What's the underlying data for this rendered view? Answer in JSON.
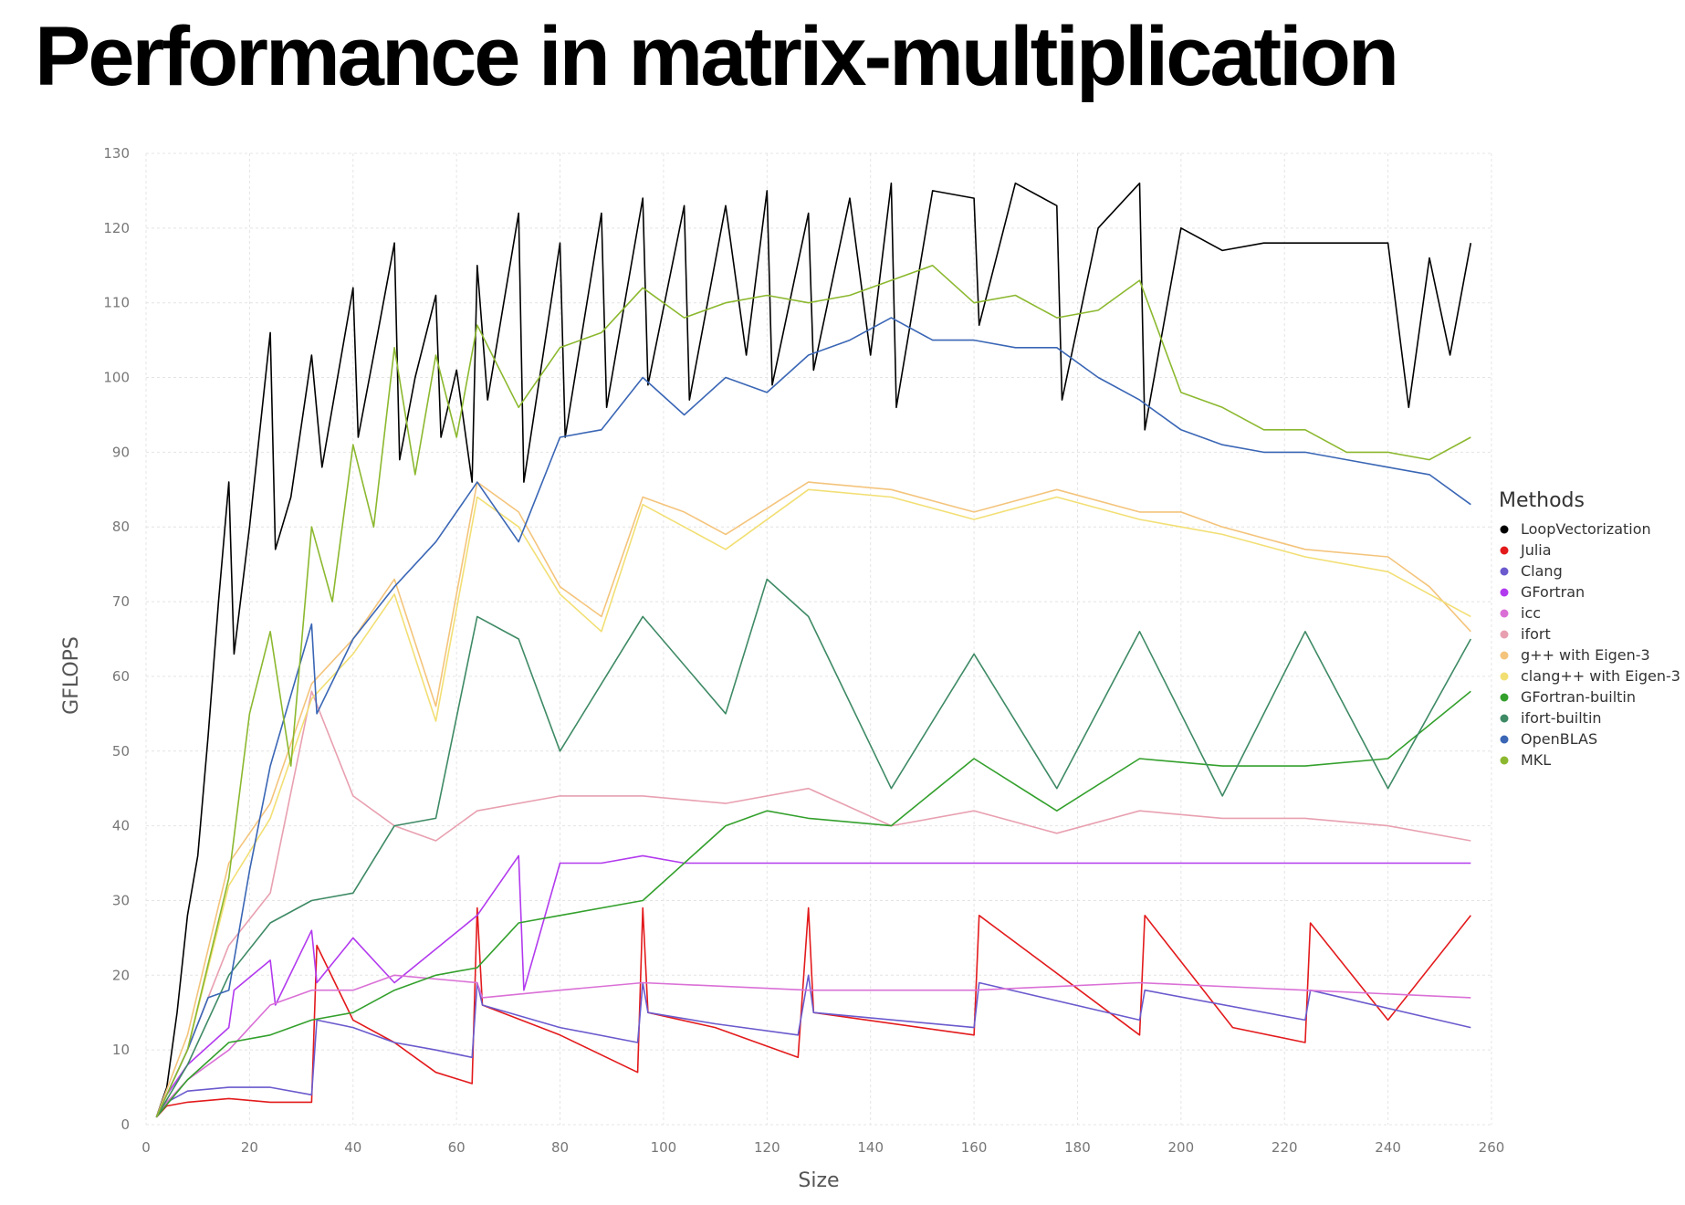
{
  "slide": {
    "title": "Performance in matrix-multiplication"
  },
  "chart_data": {
    "type": "line",
    "title": "",
    "xlabel": "Size",
    "ylabel": "GFLOPS",
    "xlim": [
      0,
      260
    ],
    "ylim": [
      0,
      130
    ],
    "xticks": [
      0,
      20,
      40,
      60,
      80,
      100,
      120,
      140,
      160,
      180,
      200,
      220,
      240,
      260
    ],
    "yticks": [
      0,
      10,
      20,
      30,
      40,
      50,
      60,
      70,
      80,
      90,
      100,
      110,
      120,
      130
    ],
    "grid": true,
    "legend": {
      "title": "Methods",
      "position": "right"
    },
    "series": [
      {
        "name": "LoopVectorization",
        "color": "#000000",
        "x": [
          2,
          4,
          6,
          8,
          10,
          12,
          14,
          16,
          17,
          20,
          24,
          25,
          28,
          32,
          34,
          40,
          41,
          44,
          48,
          49,
          52,
          56,
          57,
          60,
          63,
          64,
          66,
          72,
          73,
          80,
          81,
          88,
          89,
          96,
          97,
          104,
          105,
          112,
          116,
          120,
          121,
          128,
          129,
          136,
          140,
          144,
          145,
          152,
          160,
          161,
          168,
          176,
          177,
          184,
          192,
          193,
          200,
          208,
          216,
          224,
          232,
          240,
          244,
          248,
          252,
          256
        ],
        "y": [
          1,
          5,
          15,
          28,
          36,
          52,
          70,
          86,
          63,
          80,
          106,
          77,
          84,
          103,
          88,
          112,
          92,
          103,
          118,
          89,
          100,
          111,
          92,
          101,
          86,
          115,
          97,
          122,
          86,
          118,
          92,
          122,
          96,
          124,
          99,
          123,
          97,
          123,
          103,
          125,
          99,
          122,
          101,
          124,
          103,
          126,
          96,
          125,
          124,
          107,
          126,
          123,
          97,
          120,
          126,
          93,
          120,
          117,
          118,
          118,
          118,
          118,
          96,
          116,
          103,
          118
        ]
      },
      {
        "name": "Julia",
        "color": "#e31a1c",
        "x": [
          2,
          4,
          8,
          16,
          24,
          32,
          33,
          40,
          48,
          56,
          63,
          64,
          65,
          80,
          95,
          96,
          97,
          110,
          126,
          128,
          129,
          160,
          161,
          192,
          193,
          210,
          224,
          225,
          240,
          256
        ],
        "y": [
          1,
          2.5,
          3,
          3.5,
          3,
          3,
          24,
          14,
          11,
          7,
          5.5,
          29,
          16,
          12,
          7,
          29,
          15,
          13,
          9,
          29,
          15,
          12,
          28,
          12,
          28,
          13,
          11,
          27,
          14,
          28
        ]
      },
      {
        "name": "Clang",
        "color": "#6a5acd",
        "x": [
          2,
          4,
          8,
          16,
          24,
          32,
          33,
          40,
          48,
          56,
          63,
          64,
          65,
          80,
          95,
          96,
          97,
          110,
          126,
          128,
          129,
          160,
          161,
          192,
          193,
          224,
          225,
          256
        ],
        "y": [
          1,
          3,
          4.5,
          5,
          5,
          4,
          14,
          13,
          11,
          10,
          9,
          19,
          16,
          13,
          11,
          19,
          15,
          13.5,
          12,
          20,
          15,
          13,
          19,
          14,
          18,
          14,
          18,
          13
        ]
      },
      {
        "name": "GFortran",
        "color": "#b23aee",
        "x": [
          2,
          4,
          8,
          16,
          17,
          24,
          25,
          32,
          33,
          40,
          48,
          64,
          72,
          73,
          80,
          88,
          96,
          104,
          112,
          120,
          128,
          136,
          144,
          152,
          160,
          168,
          176,
          184,
          192,
          200,
          208,
          216,
          224,
          232,
          240,
          248,
          256
        ],
        "y": [
          1,
          4,
          8,
          13,
          18,
          22,
          16,
          26,
          19,
          25,
          19,
          28,
          36,
          18,
          35,
          35,
          36,
          35,
          35,
          35,
          35,
          35,
          35,
          35,
          35,
          35,
          35,
          35,
          35,
          35,
          35,
          35,
          35,
          35,
          35,
          35,
          35
        ]
      },
      {
        "name": "icc",
        "color": "#da70d6",
        "x": [
          2,
          4,
          8,
          16,
          20,
          24,
          32,
          40,
          48,
          64,
          65,
          80,
          96,
          128,
          160,
          192,
          224,
          256
        ],
        "y": [
          1,
          3,
          6,
          10,
          13,
          16,
          18,
          18,
          20,
          19,
          17,
          18,
          19,
          18,
          18,
          19,
          18,
          17
        ]
      },
      {
        "name": "ifort",
        "color": "#e8a0b0",
        "x": [
          2,
          4,
          8,
          16,
          24,
          32,
          40,
          48,
          56,
          64,
          80,
          96,
          112,
          128,
          144,
          160,
          176,
          192,
          208,
          224,
          240,
          256
        ],
        "y": [
          1,
          4,
          10,
          24,
          31,
          58,
          44,
          40,
          38,
          42,
          44,
          44,
          43,
          45,
          40,
          42,
          39,
          42,
          41,
          41,
          40,
          38
        ]
      },
      {
        "name": "g++ with Eigen-3",
        "color": "#f4c47c",
        "x": [
          2,
          8,
          16,
          24,
          32,
          40,
          48,
          56,
          64,
          72,
          80,
          88,
          96,
          104,
          112,
          128,
          144,
          160,
          176,
          192,
          200,
          208,
          224,
          240,
          248,
          256
        ],
        "y": [
          1,
          12,
          35,
          43,
          59,
          65,
          73,
          56,
          86,
          82,
          72,
          68,
          84,
          82,
          79,
          86,
          85,
          82,
          85,
          82,
          82,
          80,
          77,
          76,
          72,
          66
        ]
      },
      {
        "name": "clang++ with Eigen-3",
        "color": "#f2df74",
        "x": [
          2,
          8,
          16,
          24,
          32,
          40,
          48,
          56,
          64,
          72,
          80,
          88,
          96,
          104,
          112,
          128,
          144,
          160,
          176,
          192,
          200,
          208,
          224,
          240,
          248,
          256
        ],
        "y": [
          1,
          10,
          32,
          41,
          57,
          63,
          71,
          54,
          84,
          80,
          71,
          66,
          83,
          80,
          77,
          85,
          84,
          81,
          84,
          81,
          80,
          79,
          76,
          74,
          71,
          68
        ]
      },
      {
        "name": "GFortran-builtin",
        "color": "#33a02c",
        "x": [
          2,
          8,
          16,
          24,
          32,
          40,
          48,
          56,
          64,
          72,
          80,
          96,
          112,
          120,
          128,
          144,
          160,
          176,
          192,
          208,
          224,
          240,
          256
        ],
        "y": [
          1,
          6,
          11,
          12,
          14,
          15,
          18,
          20,
          21,
          27,
          28,
          30,
          40,
          42,
          41,
          40,
          49,
          42,
          49,
          48,
          48,
          49,
          58
        ]
      },
      {
        "name": "ifort-builtin",
        "color": "#3e8a65",
        "x": [
          2,
          8,
          16,
          24,
          32,
          40,
          48,
          56,
          64,
          72,
          80,
          96,
          112,
          120,
          128,
          144,
          160,
          176,
          192,
          208,
          224,
          240,
          256
        ],
        "y": [
          1,
          8,
          20,
          27,
          30,
          31,
          40,
          41,
          68,
          65,
          50,
          68,
          55,
          73,
          68,
          45,
          63,
          45,
          66,
          44,
          66,
          45,
          65
        ]
      },
      {
        "name": "OpenBLAS",
        "color": "#3a66b5",
        "x": [
          2,
          8,
          12,
          16,
          20,
          24,
          32,
          33,
          40,
          48,
          56,
          64,
          72,
          80,
          88,
          96,
          104,
          112,
          120,
          128,
          136,
          144,
          152,
          160,
          168,
          176,
          184,
          192,
          200,
          208,
          216,
          224,
          232,
          240,
          248,
          256
        ],
        "y": [
          1,
          10,
          17,
          18,
          34,
          48,
          67,
          55,
          65,
          72,
          78,
          86,
          78,
          92,
          93,
          100,
          95,
          100,
          98,
          103,
          105,
          108,
          105,
          105,
          104,
          104,
          100,
          97,
          93,
          91,
          90,
          90,
          89,
          88,
          87,
          83
        ]
      },
      {
        "name": "MKL",
        "color": "#8cb82f",
        "x": [
          2,
          8,
          16,
          20,
          24,
          28,
          32,
          36,
          40,
          44,
          48,
          52,
          56,
          60,
          64,
          72,
          80,
          88,
          96,
          104,
          112,
          120,
          128,
          136,
          144,
          152,
          160,
          168,
          176,
          184,
          192,
          200,
          208,
          216,
          224,
          232,
          240,
          248,
          256
        ],
        "y": [
          1,
          10,
          33,
          55,
          66,
          48,
          80,
          70,
          91,
          80,
          104,
          87,
          103,
          92,
          107,
          96,
          104,
          106,
          112,
          108,
          110,
          111,
          110,
          111,
          113,
          115,
          110,
          111,
          108,
          109,
          113,
          98,
          96,
          93,
          93,
          90,
          90,
          89,
          92
        ]
      }
    ]
  }
}
